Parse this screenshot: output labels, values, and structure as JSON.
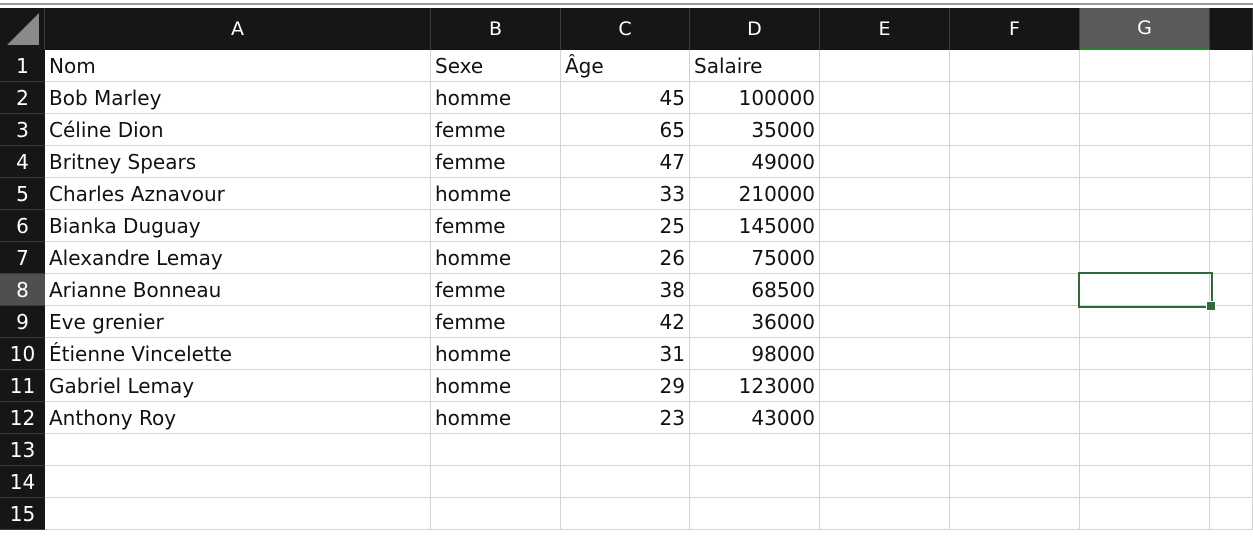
{
  "columns": [
    "A",
    "B",
    "C",
    "D",
    "E",
    "F",
    "G"
  ],
  "selected_column": "G",
  "selected_row": 8,
  "accent_color": "#2e6b3c",
  "rows": [
    {
      "n": "1",
      "a": "Nom",
      "b": "Sexe",
      "c": "Âge",
      "d": "Salaire",
      "header": true
    },
    {
      "n": "2",
      "a": "Bob Marley",
      "b": "homme",
      "c": "45",
      "d": "100000"
    },
    {
      "n": "3",
      "a": "Céline Dion",
      "b": "femme",
      "c": "65",
      "d": "35000"
    },
    {
      "n": "4",
      "a": "Britney Spears",
      "b": "femme",
      "c": "47",
      "d": "49000"
    },
    {
      "n": "5",
      "a": "Charles Aznavour",
      "b": "homme",
      "c": "33",
      "d": "210000"
    },
    {
      "n": "6",
      "a": "Bianka Duguay",
      "b": "femme",
      "c": "25",
      "d": "145000"
    },
    {
      "n": "7",
      "a": "Alexandre Lemay",
      "b": "homme",
      "c": "26",
      "d": "75000"
    },
    {
      "n": "8",
      "a": "Arianne Bonneau",
      "b": "femme",
      "c": "38",
      "d": "68500"
    },
    {
      "n": "9",
      "a": "Eve grenier",
      "b": "femme",
      "c": "42",
      "d": "36000"
    },
    {
      "n": "10",
      "a": "Étienne Vincelette",
      "b": "homme",
      "c": "31",
      "d": "98000"
    },
    {
      "n": "11",
      "a": "Gabriel Lemay",
      "b": "homme",
      "c": "29",
      "d": "123000"
    },
    {
      "n": "12",
      "a": "Anthony Roy",
      "b": "homme",
      "c": "23",
      "d": "43000"
    },
    {
      "n": "13",
      "a": "",
      "b": "",
      "c": "",
      "d": ""
    },
    {
      "n": "14",
      "a": "",
      "b": "",
      "c": "",
      "d": ""
    },
    {
      "n": "15",
      "a": "",
      "b": "",
      "c": "",
      "d": ""
    }
  ]
}
